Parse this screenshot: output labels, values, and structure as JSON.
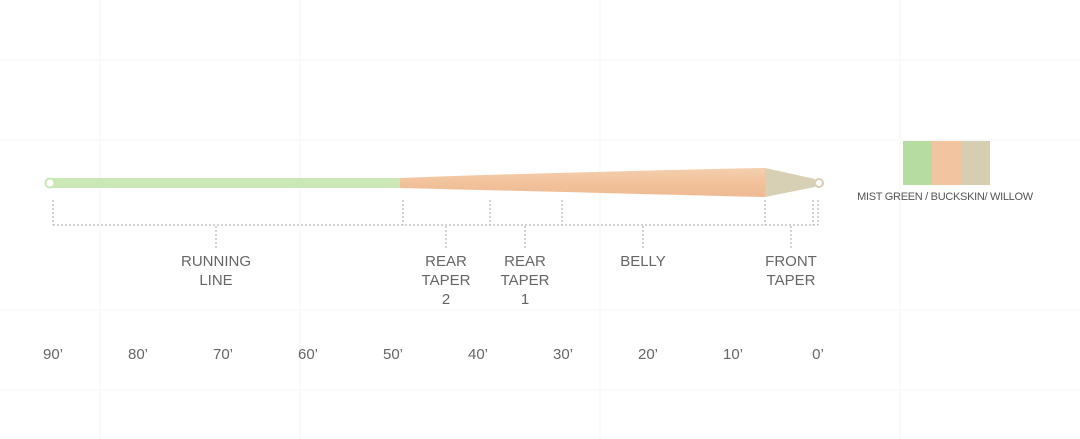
{
  "diagram": {
    "sections": [
      {
        "lines": [
          "RUNNING",
          "LINE"
        ]
      },
      {
        "lines": [
          "REAR",
          "TAPER",
          "2"
        ]
      },
      {
        "lines": [
          "REAR",
          "TAPER",
          "1"
        ]
      },
      {
        "lines": [
          "BELLY"
        ]
      },
      {
        "lines": [
          "FRONT",
          "TAPER"
        ]
      }
    ],
    "scale": [
      "90’",
      "80’",
      "70’",
      "60’",
      "50’",
      "40’",
      "30’",
      "20’",
      "10’",
      "0’"
    ],
    "legend": {
      "label": "MIST GREEN / BUCKSKIN/ WILLOW",
      "colors": [
        "#b7dca2",
        "#f2c5a0",
        "#d5ceb0"
      ]
    }
  }
}
